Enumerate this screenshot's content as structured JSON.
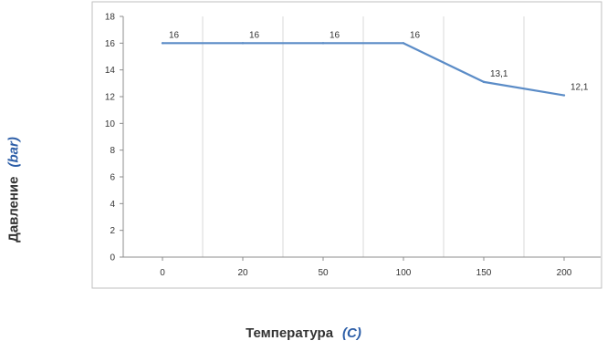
{
  "chart_data": {
    "type": "line",
    "categories": [
      "0",
      "20",
      "50",
      "100",
      "150",
      "200"
    ],
    "series": [
      {
        "values": [
          16,
          16,
          16,
          16,
          13.1,
          12.1
        ],
        "data_labels": [
          "16",
          "16",
          "16",
          "16",
          "13,1",
          "12,1"
        ]
      }
    ],
    "ylim": [
      0,
      18
    ],
    "y_ticks": [
      0,
      2,
      4,
      6,
      8,
      10,
      12,
      14,
      16,
      18
    ],
    "y_tick_labels": [
      "0",
      "2",
      "4",
      "6",
      "8",
      "10",
      "12",
      "14",
      "16",
      "18"
    ],
    "ylabel": "Давление",
    "ylabel_unit": "(bar)",
    "xlabel": "Температура",
    "xlabel_unit": "(C)",
    "grid": "vertical gridlines",
    "legend": "none"
  },
  "colors": {
    "line": "#5b8cc7",
    "grid": "#d9d9d9",
    "axis": "#8c8c8c",
    "unit": "#2e5fa8",
    "text": "#333333"
  }
}
